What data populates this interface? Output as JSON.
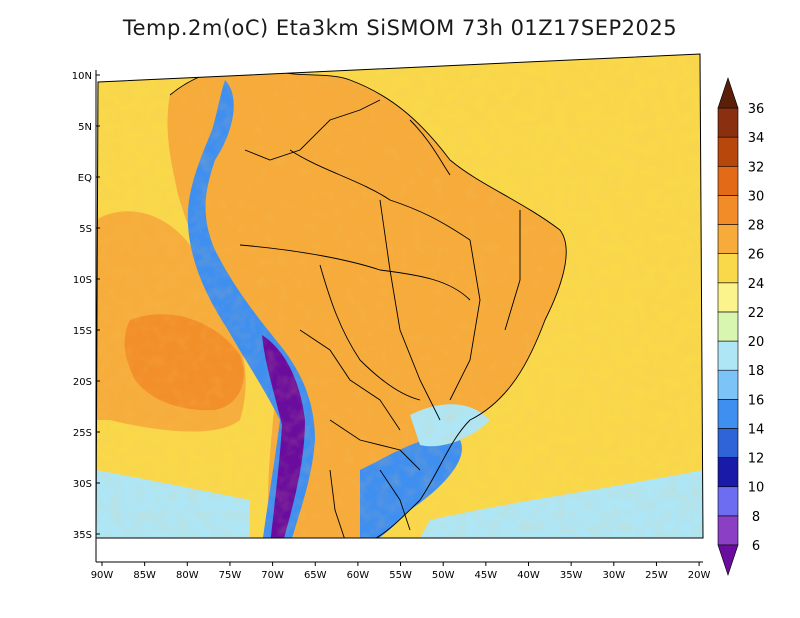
{
  "title": "Temp.2m(oC) Eta3km SiSMOM 73h 01Z17SEP2025",
  "lat_labels": [
    {
      "lat": 10,
      "label": "10N"
    },
    {
      "lat": 5,
      "label": "5N"
    },
    {
      "lat": 0,
      "label": "EQ"
    },
    {
      "lat": -5,
      "label": "5S"
    },
    {
      "lat": -10,
      "label": "10S"
    },
    {
      "lat": -15,
      "label": "15S"
    },
    {
      "lat": -20,
      "label": "20S"
    },
    {
      "lat": -25,
      "label": "25S"
    },
    {
      "lat": -30,
      "label": "30S"
    },
    {
      "lat": -35,
      "label": "35S"
    }
  ],
  "lon_labels": [
    {
      "lon": -90,
      "label": "90W"
    },
    {
      "lon": -85,
      "label": "85W"
    },
    {
      "lon": -80,
      "label": "80W"
    },
    {
      "lon": -75,
      "label": "75W"
    },
    {
      "lon": -70,
      "label": "70W"
    },
    {
      "lon": -65,
      "label": "65W"
    },
    {
      "lon": -60,
      "label": "60W"
    },
    {
      "lon": -55,
      "label": "55W"
    },
    {
      "lon": -50,
      "label": "50W"
    },
    {
      "lon": -45,
      "label": "45W"
    },
    {
      "lon": -40,
      "label": "40W"
    },
    {
      "lon": -35,
      "label": "35W"
    },
    {
      "lon": -30,
      "label": "30W"
    },
    {
      "lon": -25,
      "label": "25W"
    },
    {
      "lon": -20,
      "label": "20W"
    }
  ],
  "colorbar": {
    "levels": [
      "6",
      "8",
      "10",
      "12",
      "14",
      "16",
      "18",
      "20",
      "22",
      "24",
      "26",
      "28",
      "30",
      "32",
      "34",
      "36"
    ],
    "colors": [
      "#6a0d9e",
      "#8a3fc4",
      "#6d6df2",
      "#1a1aa8",
      "#2f63d8",
      "#3f8ff0",
      "#7cc4f8",
      "#aee6f6",
      "#d9f6b0",
      "#fbf38c",
      "#f9d84a",
      "#f6ab3a",
      "#f28c28",
      "#e36a16",
      "#b8470c",
      "#8a3010",
      "#5a1f08"
    ]
  },
  "colors": {
    "ocean_base": "#f9d84a",
    "ocean_warm": "#f6ab3a",
    "ocean_hot": "#f28c28",
    "cool_south": "#aee6f6",
    "cold": "#3f8ff0",
    "andes": "#6a0d9e",
    "border": "#000000"
  }
}
